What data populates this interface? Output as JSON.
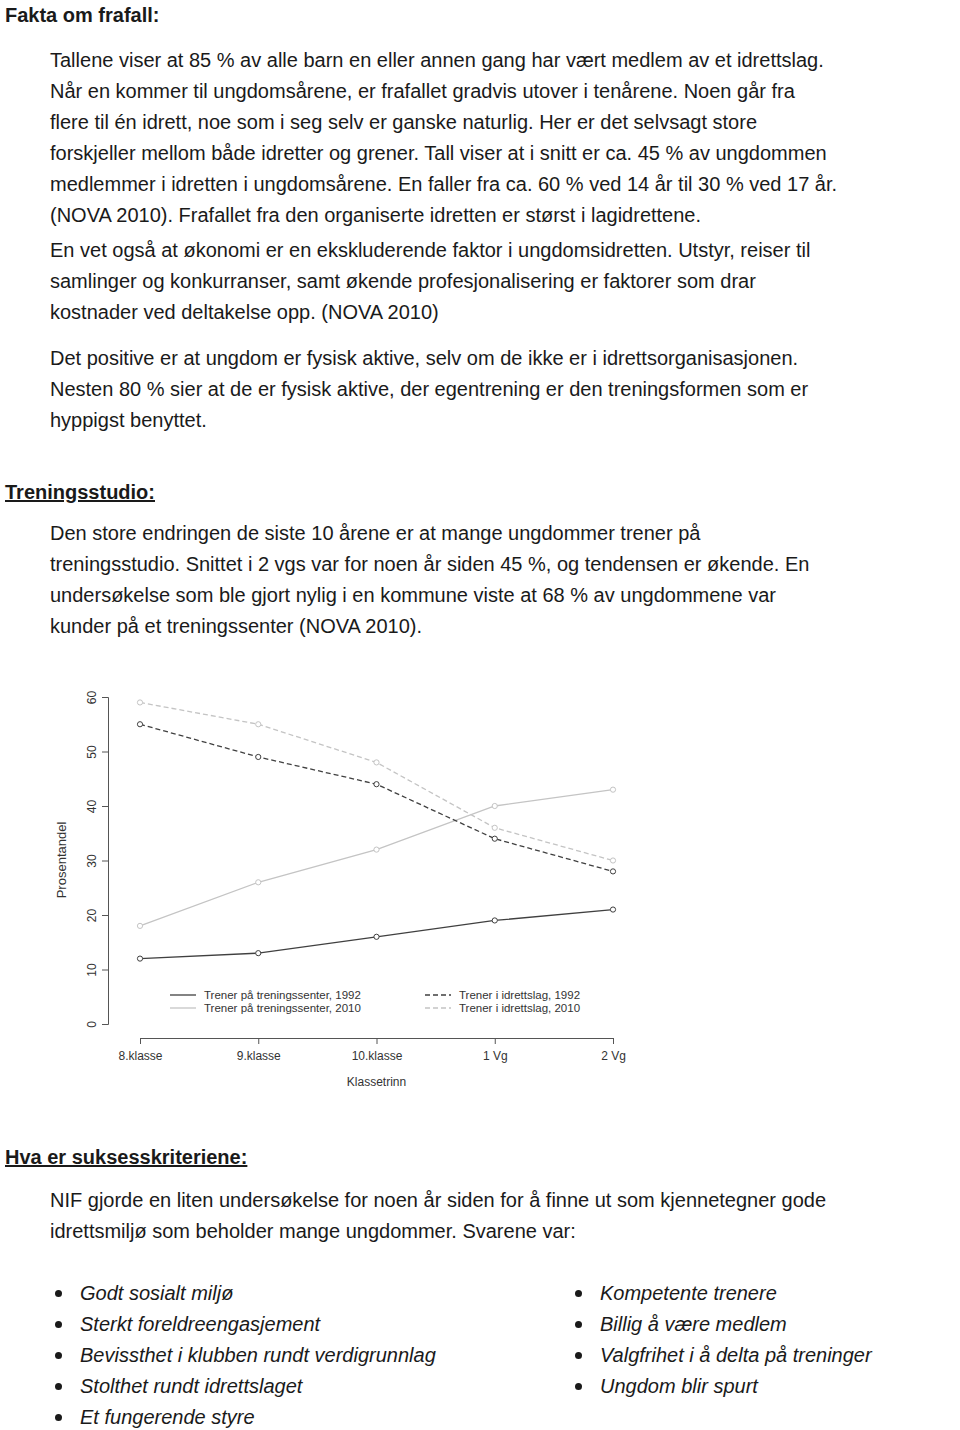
{
  "sections": [
    {
      "heading": "Fakta om frafall:",
      "paragraphs": [
        [
          "Tallene viser at 85 % av alle barn en eller annen gang har vært medlem av et idrettslag.",
          "Når en kommer til ungdomsårene, er frafallet gradvis utover i tenårene. Noen går fra",
          "flere til én idrett, noe som i seg selv er ganske naturlig. Her er det selvsagt store",
          "forskjeller mellom både idretter og grener. Tall viser at i snitt er ca. 45 % av ungdommen",
          "medlemmer i idretten i ungdomsårene. En faller fra ca. 60 % ved 14 år til 30 % ved 17 år.",
          "(NOVA 2010). Frafallet fra den organiserte idretten er størst i lagidrettene."
        ],
        [
          "En vet også at økonomi er en ekskluderende faktor i ungdomsidretten. Utstyr, reiser til",
          "samlinger og konkurranser, samt økende profesjonalisering er faktorer som drar",
          "kostnader ved deltakelse opp. (NOVA 2010)"
        ],
        [
          "Det positive er at ungdom er fysisk aktive, selv om de ikke er i idrettsorganisasjonen.",
          "Nesten 80 % sier at de er fysisk aktive, der egentrening er den treningsformen som er",
          "hyppigst benyttet."
        ]
      ]
    },
    {
      "heading": "Treningsstudio:",
      "paragraphs": [
        [
          "Den store endringen de siste 10 årene er at mange ungdommer trener på",
          "treningsstudio. Snittet i 2 vgs var for noen år siden 45 %, og tendensen er økende. En",
          "undersøkelse som ble gjort nylig i en kommune viste at 68 % av ungdommene var",
          "kunder på et treningssenter (NOVA 2010)."
        ]
      ]
    }
  ],
  "chart_data": {
    "type": "line",
    "x_label": "Klassetrinn",
    "y_label": "Prosentandel",
    "categories": [
      "8.klasse",
      "9.klasse",
      "10.klasse",
      "1 Vg",
      "2 Vg"
    ],
    "series": [
      {
        "name": "Trener på treningssenter, 1992",
        "color": "#404040",
        "line_style": "solid",
        "marker": "circle",
        "values": [
          12,
          13,
          16,
          19,
          21
        ]
      },
      {
        "name": "Trener på treningssenter, 2010",
        "color": "#c4c4c4",
        "line_style": "solid",
        "marker": "circle",
        "values": [
          18,
          26,
          32,
          40,
          43
        ]
      },
      {
        "name": "Trener i idrettslag, 1992",
        "color": "#404040",
        "line_style": "dashed",
        "marker": "circle",
        "values": [
          55,
          49,
          44,
          34,
          28
        ]
      },
      {
        "name": "Trener i idrettslag, 2010",
        "color": "#c4c4c4",
        "line_style": "dashed",
        "marker": "circle",
        "values": [
          59,
          55,
          48,
          36,
          30
        ]
      }
    ],
    "ylim": [
      0,
      60
    ],
    "yticks": [
      0,
      10,
      20,
      30,
      40,
      50,
      60
    ],
    "grid": false,
    "legend": "bottom"
  },
  "criteria": {
    "heading": "Hva er suksesskriteriene:",
    "intro": [
      "NIF gjorde en liten undersøkelse for noen år siden for å finne ut som kjennetegner gode",
      "idrettsmiljø som beholder mange ungdommer. Svarene var:"
    ],
    "bullets_left": [
      "Godt sosialt miljø",
      "Sterkt foreldreengasjement",
      "Bevissthet i klubben rundt verdigrunnlag",
      "Stolthet rundt idrettslaget",
      "Et fungerende styre"
    ],
    "bullets_right": [
      "Kompetente trenere",
      "Billig å være medlem",
      "Valgfrihet i å delta på treninger",
      "Ungdom blir spurt"
    ]
  }
}
